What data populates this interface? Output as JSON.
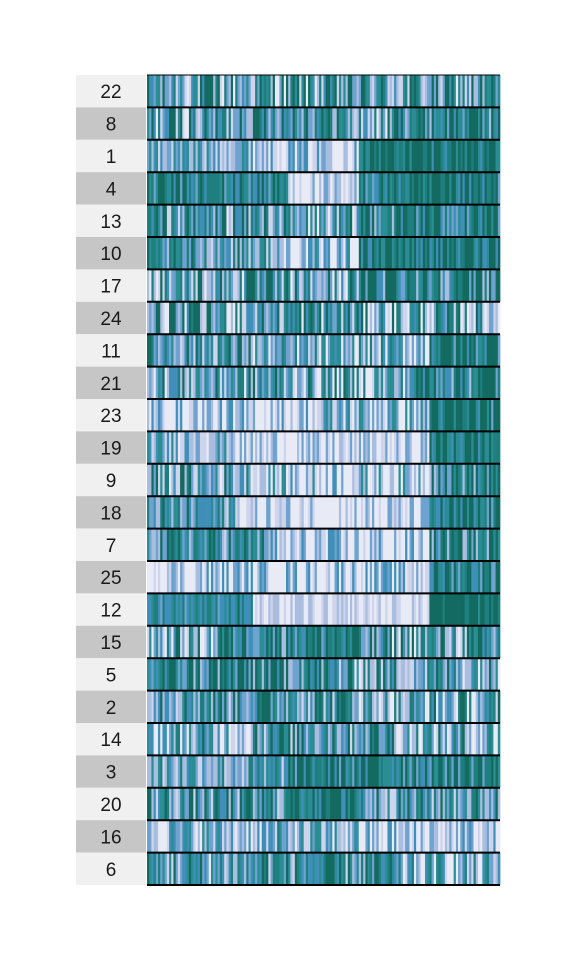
{
  "chart_data": {
    "type": "heatmap",
    "title": "",
    "xlabel": "",
    "ylabel": "",
    "legend": "none",
    "grid": false,
    "colors": [
      "#e8ebf6",
      "#cdd4ec",
      "#a9bddf",
      "#6fa3cf",
      "#3f8fb8",
      "#2a8d94",
      "#1f7f7f",
      "#136a60"
    ],
    "columns": 160,
    "seed_note": "",
    "rows": [
      {
        "label": "22",
        "label_bg": "#f0f0f0",
        "segments": [
          [
            0,
            1.0,
            0.55
          ]
        ],
        "noise": 0.6
      },
      {
        "label": "8",
        "label_bg": "#c6c6c6",
        "segments": [
          [
            0,
            0.25,
            0.55
          ],
          [
            0.25,
            0.55,
            0.75
          ],
          [
            0.55,
            0.7,
            0.45
          ],
          [
            0.7,
            1.0,
            0.85
          ]
        ],
        "noise": 0.55
      },
      {
        "label": "1",
        "label_bg": "#f0f0f0",
        "segments": [
          [
            0,
            0.3,
            0.45
          ],
          [
            0.3,
            0.6,
            0.3
          ],
          [
            0.6,
            1.0,
            0.95
          ]
        ],
        "noise": 0.35
      },
      {
        "label": "4",
        "label_bg": "#c6c6c6",
        "segments": [
          [
            0,
            0.4,
            0.75
          ],
          [
            0.4,
            0.6,
            0.08
          ],
          [
            0.6,
            1.0,
            0.8
          ]
        ],
        "noise": 0.35
      },
      {
        "label": "13",
        "label_bg": "#f0f0f0",
        "segments": [
          [
            0,
            0.4,
            0.6
          ],
          [
            0.4,
            0.6,
            0.4
          ],
          [
            0.6,
            1.0,
            0.85
          ]
        ],
        "noise": 0.55
      },
      {
        "label": "10",
        "label_bg": "#c6c6c6",
        "segments": [
          [
            0,
            0.35,
            0.55
          ],
          [
            0.35,
            0.6,
            0.25
          ],
          [
            0.6,
            1.0,
            0.9
          ]
        ],
        "noise": 0.4
      },
      {
        "label": "17",
        "label_bg": "#f0f0f0",
        "segments": [
          [
            0,
            0.35,
            0.55
          ],
          [
            0.35,
            0.6,
            0.45
          ],
          [
            0.6,
            1.0,
            0.85
          ]
        ],
        "noise": 0.55
      },
      {
        "label": "24",
        "label_bg": "#c6c6c6",
        "segments": [
          [
            0,
            0.3,
            0.5
          ],
          [
            0.3,
            0.6,
            0.6
          ],
          [
            0.6,
            1.0,
            0.45
          ]
        ],
        "noise": 0.6
      },
      {
        "label": "11",
        "label_bg": "#f0f0f0",
        "segments": [
          [
            0,
            0.3,
            0.6
          ],
          [
            0.3,
            0.8,
            0.35
          ],
          [
            0.8,
            1.0,
            0.9
          ]
        ],
        "noise": 0.5
      },
      {
        "label": "21",
        "label_bg": "#c6c6c6",
        "segments": [
          [
            0,
            0.4,
            0.55
          ],
          [
            0.4,
            0.75,
            0.45
          ],
          [
            0.75,
            1.0,
            0.85
          ]
        ],
        "noise": 0.55
      },
      {
        "label": "23",
        "label_bg": "#f0f0f0",
        "segments": [
          [
            0,
            0.5,
            0.15
          ],
          [
            0.5,
            0.8,
            0.35
          ],
          [
            0.8,
            1.0,
            0.9
          ]
        ],
        "noise": 0.45
      },
      {
        "label": "19",
        "label_bg": "#c6c6c6",
        "segments": [
          [
            0,
            0.25,
            0.4
          ],
          [
            0.25,
            0.8,
            0.12
          ],
          [
            0.8,
            1.0,
            0.85
          ]
        ],
        "noise": 0.35
      },
      {
        "label": "9",
        "label_bg": "#f0f0f0",
        "segments": [
          [
            0,
            0.3,
            0.5
          ],
          [
            0.3,
            0.8,
            0.25
          ],
          [
            0.8,
            1.0,
            0.8
          ]
        ],
        "noise": 0.5
      },
      {
        "label": "18",
        "label_bg": "#c6c6c6",
        "segments": [
          [
            0,
            0.25,
            0.55
          ],
          [
            0.25,
            0.8,
            0.1
          ],
          [
            0.8,
            1.0,
            0.75
          ]
        ],
        "noise": 0.4
      },
      {
        "label": "7",
        "label_bg": "#f0f0f0",
        "segments": [
          [
            0,
            0.35,
            0.65
          ],
          [
            0.35,
            0.8,
            0.15
          ],
          [
            0.8,
            1.0,
            0.7
          ]
        ],
        "noise": 0.45
      },
      {
        "label": "25",
        "label_bg": "#c6c6c6",
        "segments": [
          [
            0,
            0.55,
            0.2
          ],
          [
            0.55,
            0.8,
            0.25
          ],
          [
            0.8,
            1.0,
            0.8
          ]
        ],
        "noise": 0.4
      },
      {
        "label": "12",
        "label_bg": "#f0f0f0",
        "segments": [
          [
            0,
            0.3,
            0.7
          ],
          [
            0.3,
            0.8,
            0.08
          ],
          [
            0.8,
            1.0,
            1.0
          ]
        ],
        "noise": 0.25
      },
      {
        "label": "15",
        "label_bg": "#c6c6c6",
        "segments": [
          [
            0,
            0.2,
            0.45
          ],
          [
            0.2,
            0.6,
            0.85
          ],
          [
            0.6,
            1.0,
            0.55
          ]
        ],
        "noise": 0.55
      },
      {
        "label": "5",
        "label_bg": "#f0f0f0",
        "segments": [
          [
            0,
            0.5,
            0.75
          ],
          [
            0.5,
            1.0,
            0.55
          ]
        ],
        "noise": 0.55
      },
      {
        "label": "2",
        "label_bg": "#c6c6c6",
        "segments": [
          [
            0,
            0.6,
            0.7
          ],
          [
            0.6,
            1.0,
            0.45
          ]
        ],
        "noise": 0.55
      },
      {
        "label": "14",
        "label_bg": "#f0f0f0",
        "segments": [
          [
            0,
            0.3,
            0.4
          ],
          [
            0.3,
            0.7,
            0.7
          ],
          [
            0.7,
            1.0,
            0.45
          ]
        ],
        "noise": 0.55
      },
      {
        "label": "3",
        "label_bg": "#c6c6c6",
        "segments": [
          [
            0,
            0.4,
            0.5
          ],
          [
            0.4,
            1.0,
            0.85
          ]
        ],
        "noise": 0.45
      },
      {
        "label": "20",
        "label_bg": "#f0f0f0",
        "segments": [
          [
            0,
            0.4,
            0.6
          ],
          [
            0.4,
            0.6,
            0.95
          ],
          [
            0.6,
            1.0,
            0.6
          ]
        ],
        "noise": 0.5
      },
      {
        "label": "16",
        "label_bg": "#c6c6c6",
        "segments": [
          [
            0,
            0.6,
            0.35
          ],
          [
            0.6,
            1.0,
            0.2
          ]
        ],
        "noise": 0.45
      },
      {
        "label": "6",
        "label_bg": "#f0f0f0",
        "segments": [
          [
            0,
            0.3,
            0.55
          ],
          [
            0.3,
            0.7,
            0.65
          ],
          [
            0.7,
            1.0,
            0.35
          ]
        ],
        "noise": 0.5
      }
    ]
  }
}
